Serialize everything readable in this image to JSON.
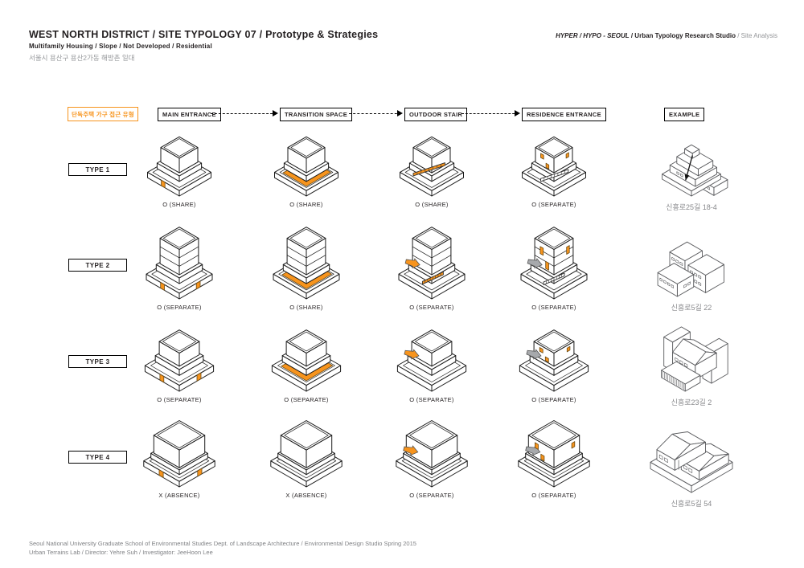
{
  "header": {
    "title": "WEST NORTH DISTRICT / SITE TYPOLOGY 07 / Prototype & Strategies",
    "subtitle": "Multifamily Housing / Slope / Not Developed / Residential",
    "site_kr": "서울시 용산구 용산2가동 해방촌 일대",
    "right": {
      "italic": "HYPER / HYPO - SEOUL",
      "bold": " / Urban Typology Research Studio",
      "light": " / Site Analysis"
    }
  },
  "legend": {
    "label": "단독주택 가구 접근 유형"
  },
  "columns": [
    "MAIN ENTRANCE",
    "TRANSITION SPACE",
    "OUTDOOR STAIR",
    "RESIDENCE ENTRANCE",
    "EXAMPLE"
  ],
  "colors": {
    "accent": "#F7941D",
    "line": "#1a1a1a",
    "muted": "#808285"
  },
  "rows": [
    {
      "type": "TYPE 1",
      "cells": [
        {
          "label": "O (SHARE)",
          "marks": [
            "door-front"
          ]
        },
        {
          "label": "O (SHARE)",
          "marks": [
            "path"
          ]
        },
        {
          "label": "O (SHARE)",
          "marks": [
            "stair-o"
          ]
        },
        {
          "label": "O (SEPARATE)",
          "marks": [
            "stair-h",
            "doors-upper"
          ]
        }
      ],
      "example": {
        "caption": "신흥로25길 18-4"
      }
    },
    {
      "type": "TYPE 2",
      "cells": [
        {
          "label": "O (SEPARATE)",
          "marks": [
            "door-right",
            "door-front"
          ]
        },
        {
          "label": "O (SHARE)",
          "marks": [
            "path"
          ]
        },
        {
          "label": "O (SEPARATE)",
          "marks": [
            "arrow-o",
            "stair-o2"
          ]
        },
        {
          "label": "O (SEPARATE)",
          "marks": [
            "arrow-g",
            "stair-h2",
            "doors-upper"
          ]
        }
      ],
      "example": {
        "caption": "신흥로5길 22"
      }
    },
    {
      "type": "TYPE 3",
      "cells": [
        {
          "label": "O (SEPARATE)",
          "marks": [
            "door-right",
            "door-front"
          ]
        },
        {
          "label": "O (SEPARATE)",
          "marks": [
            "path"
          ]
        },
        {
          "label": "O (SEPARATE)",
          "marks": [
            "arrow-o"
          ]
        },
        {
          "label": "O (SEPARATE)",
          "marks": [
            "arrow-g",
            "doors-upper"
          ]
        }
      ],
      "example": {
        "caption": "신흥로23길 2"
      }
    },
    {
      "type": "TYPE 4",
      "cells": [
        {
          "label": "X (ABSENCE)",
          "marks": [
            "door-right",
            "door-front"
          ]
        },
        {
          "label": "X (ABSENCE)",
          "marks": []
        },
        {
          "label": "O (SEPARATE)",
          "marks": [
            "arrow-o"
          ]
        },
        {
          "label": "O (SEPARATE)",
          "marks": [
            "arrow-g",
            "doors-upper"
          ]
        }
      ],
      "example": {
        "caption": "신흥로5길 54"
      }
    }
  ],
  "footer": {
    "line1": "Seoul National University Graduate School of Environmental Studies Dept. of Landscape Architecture / Environmental Design Studio Spring 2015",
    "line2": "Urban Terrains Lab / Director: Yehre Suh / Investigator: JeeHoon Lee"
  }
}
